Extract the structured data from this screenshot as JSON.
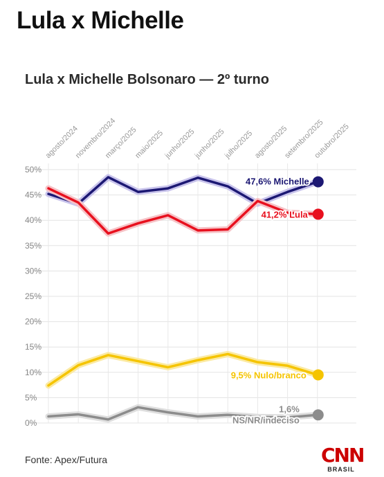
{
  "page": {
    "headline": "Lula x Michelle",
    "source": "Fonte: Apex/Futura",
    "logo": {
      "mark": "CNN",
      "sub": "BRASIL",
      "color": "#cc0000"
    }
  },
  "chart_data": {
    "type": "line",
    "title": "Lula x Michelle Bolsonaro — 2º turno",
    "categories": [
      "agosto/2024",
      "novembro/2024",
      "março/2025",
      "maio/2025",
      "junho/2025",
      "junho/2025",
      "julho/2025",
      "agosto/2025",
      "setembro/2025",
      "outubro/2025"
    ],
    "yticks": [
      "0%",
      "5%",
      "10%",
      "15%",
      "20%",
      "25%",
      "30%",
      "35%",
      "40%",
      "45%",
      "50%"
    ],
    "ylim": [
      0,
      50
    ],
    "grid": true,
    "series": [
      {
        "name": "Michelle",
        "label": "47,6% Michelle",
        "color": "#1c1873",
        "glow": "#c9c4ec",
        "values": [
          45.2,
          43.3,
          48.5,
          45.6,
          46.3,
          48.4,
          46.7,
          43.3,
          45.6,
          47.6
        ]
      },
      {
        "name": "Lula",
        "label": "41,2% Lula",
        "color": "#e8101e",
        "glow": "#f6c2c6",
        "values": [
          46.3,
          43.5,
          37.4,
          39.4,
          41.0,
          38.0,
          38.2,
          43.8,
          41.5,
          41.2
        ]
      },
      {
        "name": "Nulo/branco",
        "label": "9,5% Nulo/branco",
        "color": "#f5c400",
        "glow": "#fbeaa3",
        "values": [
          7.4,
          11.4,
          13.4,
          12.2,
          11.0,
          12.4,
          13.6,
          12.0,
          11.3,
          9.5
        ]
      },
      {
        "name": "NS/NR/indeciso",
        "label_value": "1,6%",
        "label_name": "NS/NR/indeciso",
        "color": "#8c8c8c",
        "glow": "#dedede",
        "values": [
          1.3,
          1.7,
          0.7,
          3.1,
          2.1,
          1.3,
          1.6,
          1.2,
          1.1,
          1.6
        ]
      }
    ]
  }
}
